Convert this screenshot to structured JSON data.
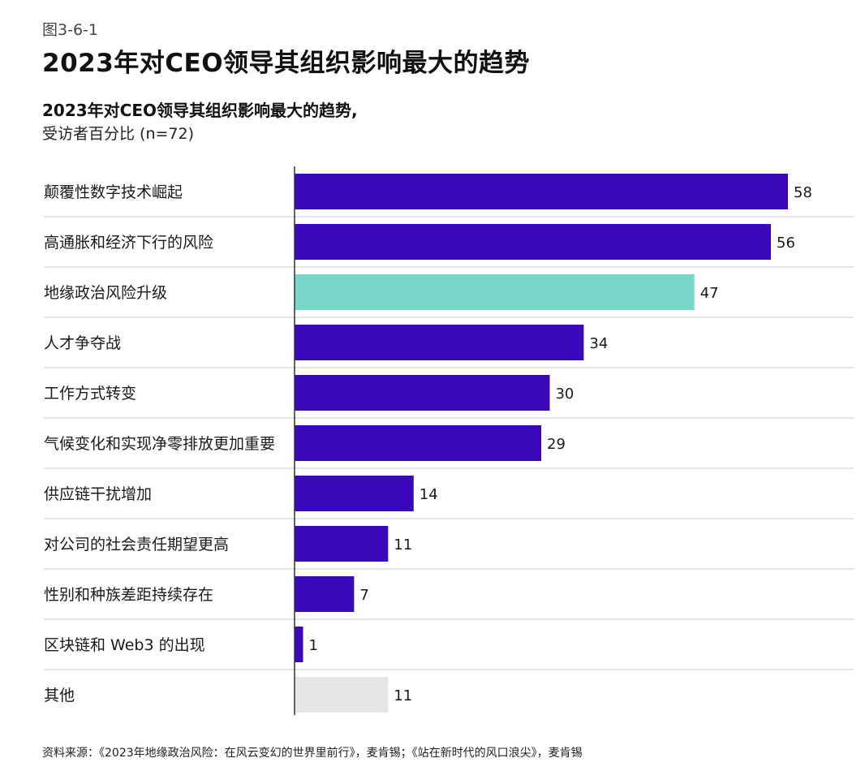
{
  "figure_label": "图3-6-1",
  "main_title": "2023年对CEO领导其组织影响最大的趋势",
  "source": "资料来源：《2023年地缘政治风险：在风云变幻的世界里前行》，麦肯锡；《站在新时代的风口浪尖》，麦肯锡",
  "colors": {
    "primary_bar": "#3a08b8",
    "highlight_bar": "#79d6cb",
    "other_bar": "#e6e6e6",
    "separator": "#c8c8c8",
    "axis": "#333333"
  },
  "chart_data": {
    "type": "bar",
    "orientation": "horizontal",
    "title": "2023年对CEO领导其组织影响最大的趋势,",
    "subtitle": "受访者百分比 (n=72)",
    "categories": [
      "颠覆性数字技术崛起",
      "高通胀和经济下行的风险",
      "地缘政治风险升级",
      "人才争夺战",
      "工作方式转变",
      "气候变化和实现净零排放更加重要",
      "供应链干扰增加",
      "对公司的社会责任期望更高",
      "性别和种族差距持续存在",
      "区块链和 Web3 的出现",
      "其他"
    ],
    "values": [
      58,
      56,
      47,
      34,
      30,
      29,
      14,
      11,
      7,
      1,
      11
    ],
    "bar_color_keys": [
      "primary_bar",
      "primary_bar",
      "highlight_bar",
      "primary_bar",
      "primary_bar",
      "primary_bar",
      "primary_bar",
      "primary_bar",
      "primary_bar",
      "primary_bar",
      "other_bar"
    ],
    "xlim": [
      0,
      58
    ],
    "grid": false,
    "legend": "none"
  }
}
